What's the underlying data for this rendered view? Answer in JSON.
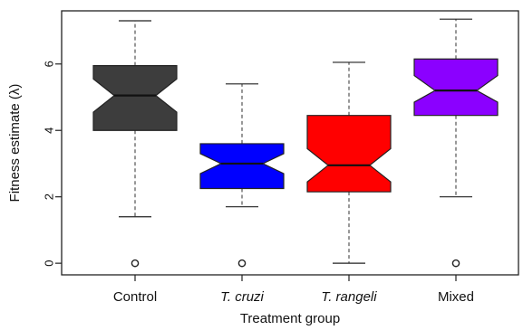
{
  "chart_data": {
    "type": "boxplot",
    "notched": true,
    "title": "",
    "xlabel": "Treatment group",
    "ylabel": "Fitness estimate (λ)",
    "ylim": [
      -0.35,
      7.6
    ],
    "yticks": [
      0,
      2,
      4,
      6
    ],
    "grid": false,
    "categories": [
      "Control",
      "T. cruzi",
      "T. rangeli",
      "Mixed"
    ],
    "category_italic": [
      false,
      true,
      true,
      false
    ],
    "colors": [
      "#3d3d3d",
      "#0000ff",
      "#ff0000",
      "#8b00ff"
    ],
    "boxes": [
      {
        "name": "Control",
        "whisker_low": 1.4,
        "q1": 4.0,
        "median": 5.05,
        "q3": 5.95,
        "whisker_high": 7.3,
        "notch_low": 4.55,
        "notch_high": 5.55,
        "outliers": [
          0
        ]
      },
      {
        "name": "T. cruzi",
        "whisker_low": 1.7,
        "q1": 2.25,
        "median": 3.0,
        "q3": 3.6,
        "whisker_high": 5.4,
        "notch_low": 2.7,
        "notch_high": 3.3,
        "outliers": [
          0
        ]
      },
      {
        "name": "T. rangeli",
        "whisker_low": 0.0,
        "q1": 2.15,
        "median": 2.95,
        "q3": 4.45,
        "whisker_high": 6.05,
        "notch_low": 2.45,
        "notch_high": 3.45,
        "outliers": []
      },
      {
        "name": "Mixed",
        "whisker_low": 2.0,
        "q1": 4.45,
        "median": 5.2,
        "q3": 6.15,
        "whisker_high": 7.35,
        "notch_low": 4.85,
        "notch_high": 5.65,
        "outliers": [
          0
        ]
      }
    ]
  }
}
